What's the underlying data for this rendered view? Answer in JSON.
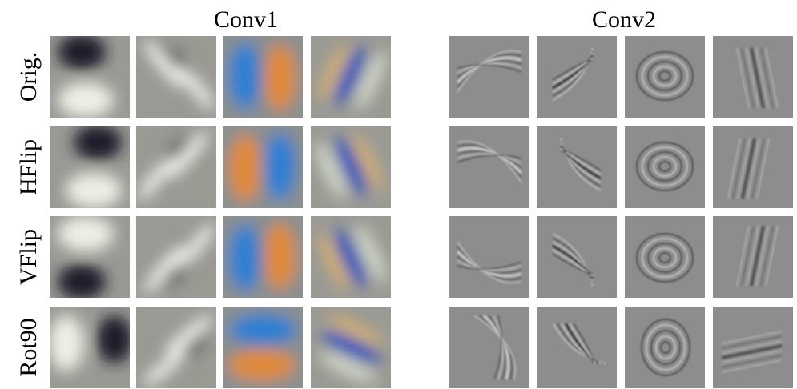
{
  "columns": [
    {
      "title": "Conv1"
    },
    {
      "title": "Conv2"
    }
  ],
  "rows": [
    {
      "label": "Orig."
    },
    {
      "label": "HFlip"
    },
    {
      "label": "VFlip"
    },
    {
      "label": "Rot90"
    }
  ]
}
